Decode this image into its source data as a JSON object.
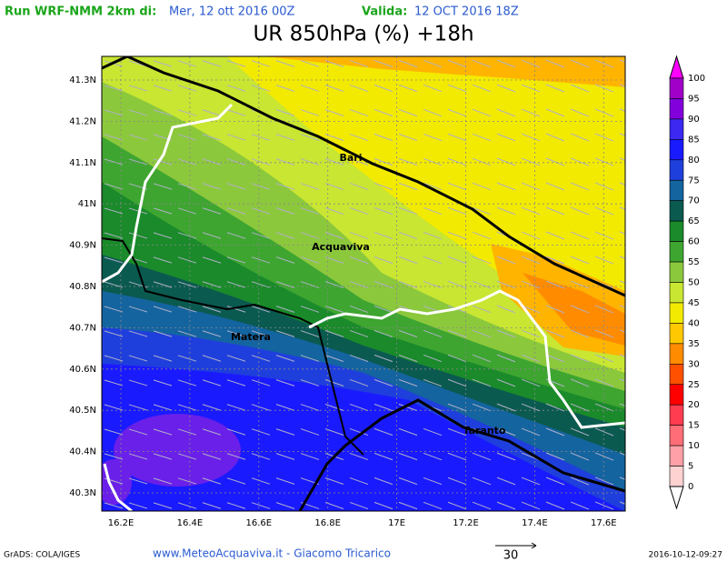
{
  "header": {
    "run_label": "Run WRF-NMM 2km di:",
    "run_date": "Mer, 12 ott 2016 00Z",
    "valid_label": "Valida:",
    "valid_date": "12 OCT 2016 18Z",
    "title": "UR 850hPa (%) +18h"
  },
  "map": {
    "y_labels": [
      "41.3N",
      "41.2N",
      "41.1N",
      "41N",
      "40.9N",
      "40.8N",
      "40.7N",
      "40.6N",
      "40.5N",
      "40.4N",
      "40.3N"
    ],
    "x_labels": [
      "16.2E",
      "16.4E",
      "16.6E",
      "16.8E",
      "17E",
      "17.2E",
      "17.4E",
      "17.6E"
    ],
    "places": [
      "Bari",
      "Acquaviva",
      "Matera",
      "Taranto"
    ]
  },
  "colorbar": {
    "labels": [
      "100",
      "95",
      "90",
      "85",
      "80",
      "75",
      "70",
      "65",
      "60",
      "55",
      "50",
      "45",
      "40",
      "35",
      "30",
      "25",
      "20",
      "15",
      "10",
      "5",
      "0"
    ]
  },
  "footer": {
    "software": "GrADS: COLA/IGES",
    "credit": "www.MeteoAcquaviva.it - Giacomo Tricarico",
    "vector_scale": "30",
    "timestamp": "2016-10-12-09:27"
  }
}
